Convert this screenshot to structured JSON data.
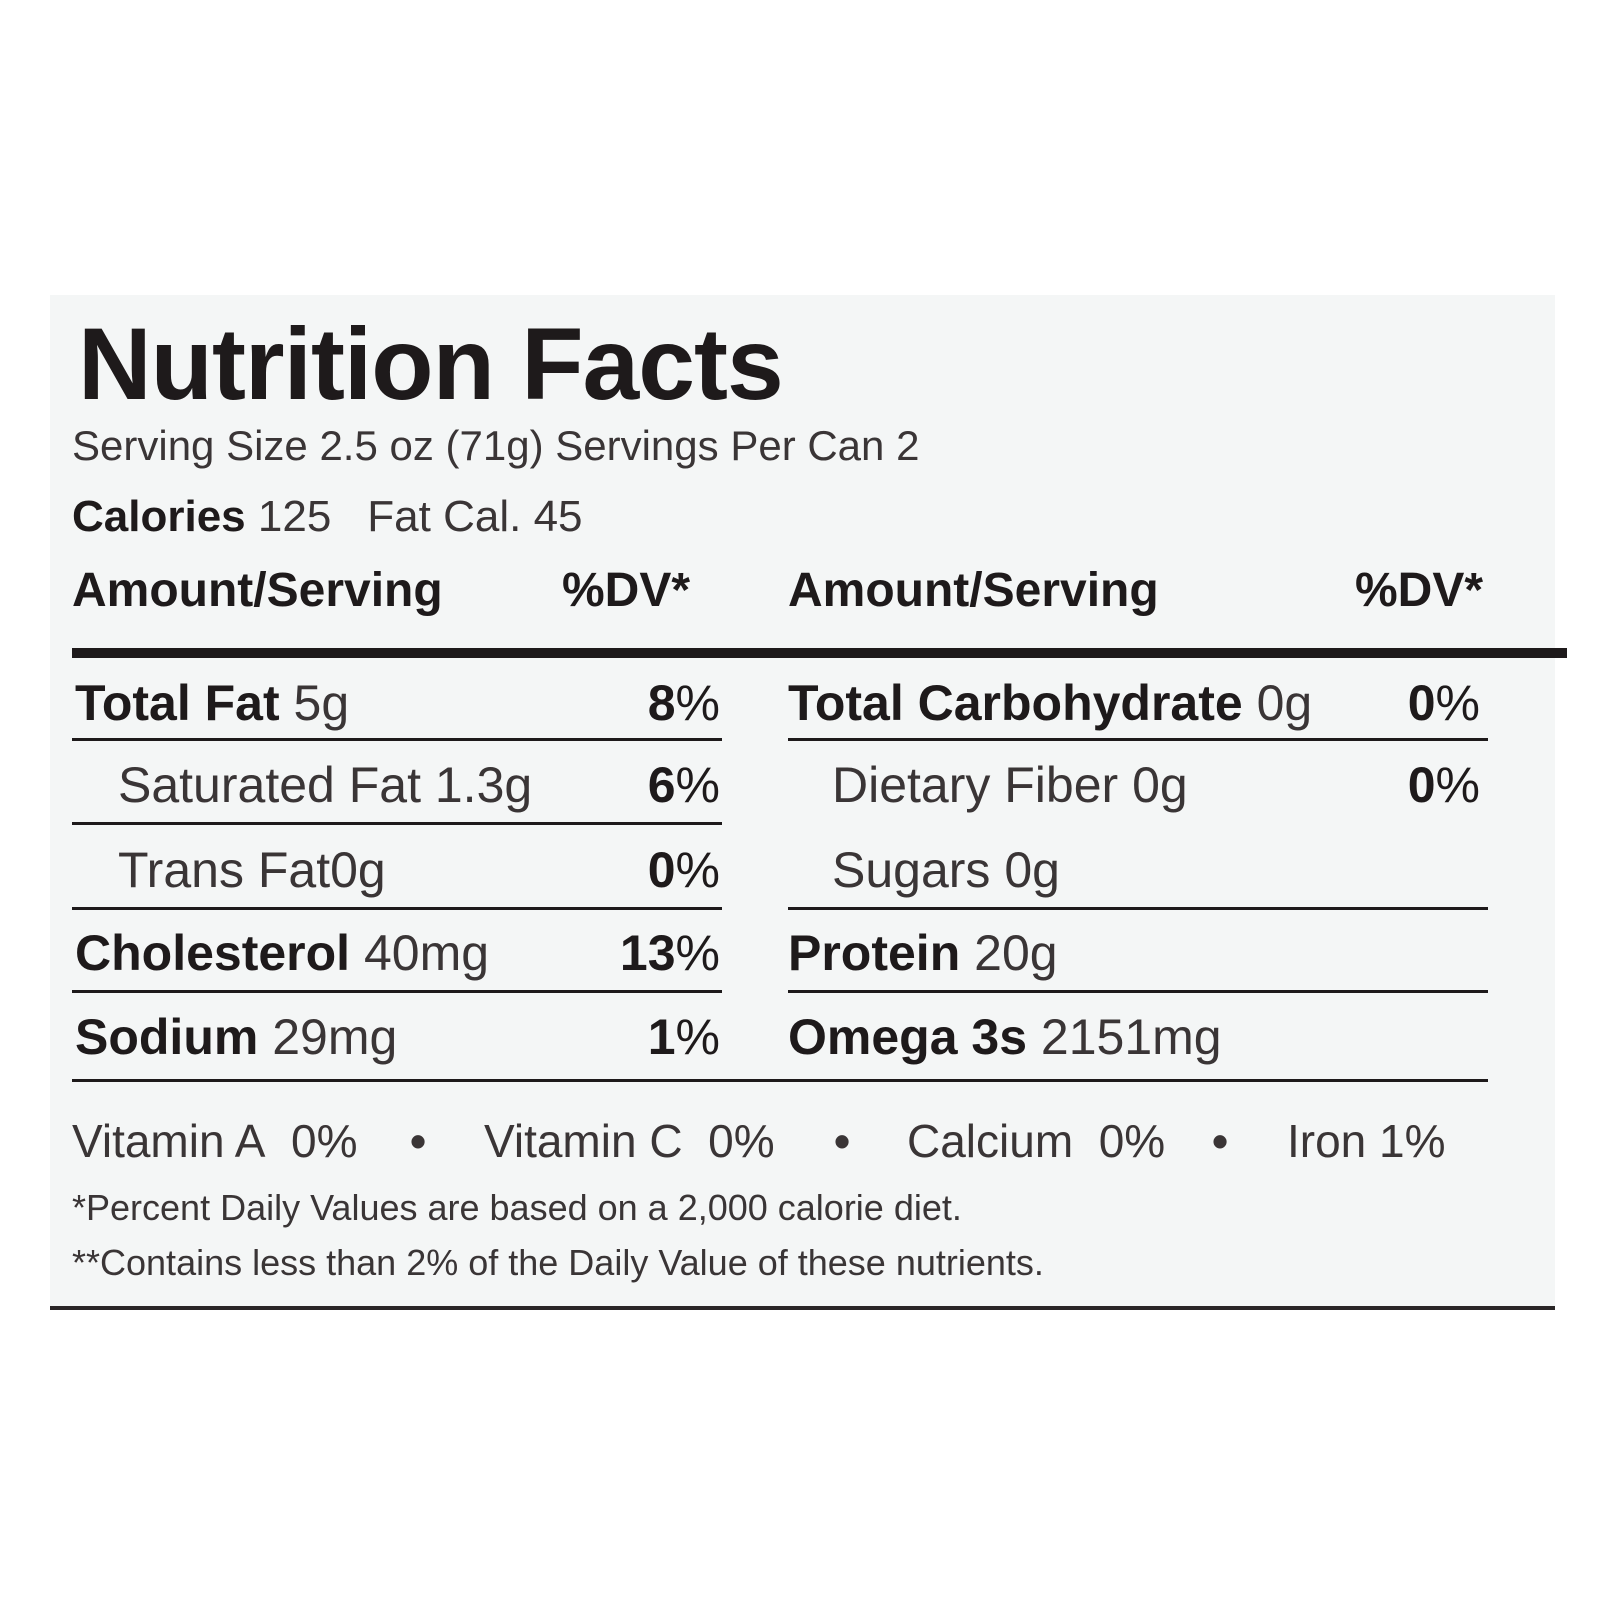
{
  "title": "Nutrition Facts",
  "serving_line": "Serving Size 2.5 oz (71g) Servings Per Can 2",
  "calories": {
    "label": "Calories",
    "value": "125",
    "fat_cal": "Fat Cal. 45"
  },
  "header": {
    "amount_left": "Amount/Serving",
    "dv_left": "%DV*",
    "amount_right": "Amount/Serving",
    "dv_right": "%DV*"
  },
  "left_rows": [
    {
      "name": "Total Fat",
      "amount": "5g",
      "dv_num": "8",
      "dv_sym": "%"
    },
    {
      "name": "Saturated Fat",
      "amount": "1.3g",
      "dv_num": "6",
      "dv_sym": "%"
    },
    {
      "name": "Trans Fat",
      "amount": "0g",
      "dv_num": "0",
      "dv_sym": "%"
    },
    {
      "name": "Cholesterol",
      "amount": "40mg",
      "dv_num": "13",
      "dv_sym": "%"
    },
    {
      "name": "Sodium",
      "amount": "29mg",
      "dv_num": "1",
      "dv_sym": "%"
    }
  ],
  "right_rows": [
    {
      "name": "Total Carbohydrate",
      "amount": "0g",
      "dv_num": "0",
      "dv_sym": "%"
    },
    {
      "name": "Dietary Fiber",
      "amount": "0g",
      "dv_num": "0",
      "dv_sym": "%"
    },
    {
      "name": "Sugars",
      "amount": "0g"
    },
    {
      "name": "Protein",
      "amount": "20g"
    },
    {
      "name": "Omega 3s",
      "amount": "2151mg"
    }
  ],
  "vitamins": [
    {
      "name": "Vitamin A",
      "value": "0%"
    },
    {
      "name": "Vitamin C",
      "value": "0%"
    },
    {
      "name": "Calcium",
      "value": "0%"
    },
    {
      "name": "Iron",
      "value": "1%"
    }
  ],
  "bullet": "•",
  "footnotes": [
    "*Percent Daily Values are based on a 2,000 calorie diet.",
    "**Contains less than 2% of the Daily Value of these nutrients."
  ]
}
